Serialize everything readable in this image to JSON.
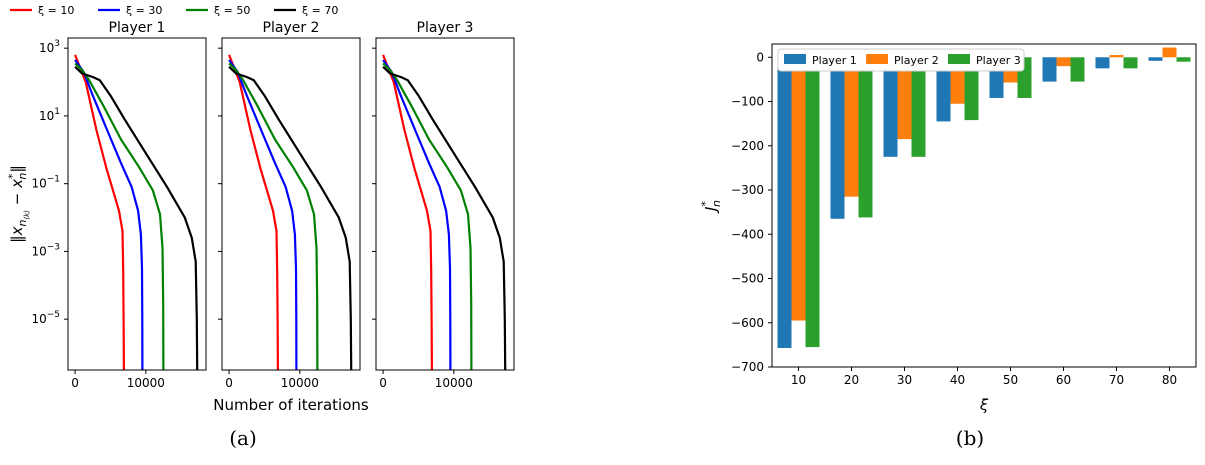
{
  "captions": {
    "a": "(a)",
    "b": "(b)"
  },
  "chart_data": [
    {
      "type": "line",
      "yscale": "log",
      "xlabel": "Number of iterations",
      "ylabel": "‖x_{n^{(k)}} − x_n^*‖",
      "ylabel_parts": {
        "open": "‖x",
        "sub": "n",
        "subsup": "(k)",
        "mid": " − x",
        "sub2": "n",
        "sup2": "*",
        "close": "‖"
      },
      "xlim": [
        -1000,
        18500
      ],
      "ylim_exp": [
        -6.5,
        3.3
      ],
      "xticks": [
        {
          "value": 0,
          "label": "0"
        },
        {
          "value": 10000,
          "label": "10000"
        }
      ],
      "yticks": [
        {
          "exp": 3,
          "base": "10",
          "label": "3"
        },
        {
          "exp": 1,
          "base": "10",
          "label": "1"
        },
        {
          "exp": -1,
          "base": "10",
          "label": "−1"
        },
        {
          "exp": -3,
          "base": "10",
          "label": "−3"
        },
        {
          "exp": -5,
          "base": "10",
          "label": "−5"
        }
      ],
      "legend": {
        "placement": "top-left, above panels",
        "prefix": "ξ = "
      },
      "panels": [
        {
          "title": "Player 1",
          "title_color": "#ff0000"
        },
        {
          "title": "Player 2",
          "title_color": "#0000ff"
        },
        {
          "title": "Player 3",
          "title_color": "#008000"
        }
      ],
      "series": [
        {
          "name": "ξ = 10",
          "xi": "10",
          "color": "#ff0000",
          "x": [
            0,
            1500,
            3000,
            4500,
            5500,
            6200,
            6700,
            6800,
            6850,
            6900
          ],
          "y_exp": [
            2.8,
            2.0,
            0.6,
            -0.6,
            -1.3,
            -1.8,
            -2.4,
            -3.6,
            -5.0,
            -6.5
          ]
        },
        {
          "name": "ξ = 30",
          "xi": "30",
          "color": "#0000ff",
          "x": [
            0,
            1200,
            2500,
            4500,
            6500,
            8000,
            8900,
            9300,
            9450,
            9500,
            9520
          ],
          "y_exp": [
            2.65,
            2.3,
            1.6,
            0.6,
            -0.4,
            -1.1,
            -1.8,
            -2.5,
            -3.5,
            -5.0,
            -6.5
          ]
        },
        {
          "name": "ξ = 50",
          "xi": "50",
          "color": "#008000",
          "x": [
            0,
            1000,
            2000,
            4000,
            6500,
            9000,
            11000,
            12000,
            12350,
            12450,
            12480
          ],
          "y_exp": [
            2.55,
            2.35,
            2.05,
            1.3,
            0.3,
            -0.5,
            -1.2,
            -1.9,
            -2.9,
            -4.5,
            -6.5
          ]
        },
        {
          "name": "ξ = 70",
          "xi": "70",
          "color": "#000000",
          "x": [
            0,
            1000,
            2500,
            3500,
            5000,
            7000,
            10000,
            13000,
            15500,
            16500,
            17050,
            17200,
            17250
          ],
          "y_exp": [
            2.45,
            2.25,
            2.15,
            2.05,
            1.6,
            0.9,
            -0.1,
            -1.1,
            -2.0,
            -2.6,
            -3.3,
            -5.0,
            -6.5
          ]
        }
      ]
    },
    {
      "type": "bar",
      "categories": [
        "10",
        "20",
        "30",
        "40",
        "50",
        "60",
        "70",
        "80"
      ],
      "xlabel": "ξ",
      "ylabel": "J_n^*",
      "ylabel_parts": {
        "base": "J",
        "sub": "n",
        "sup": "*"
      },
      "ylim": [
        -700,
        30
      ],
      "yticks": [
        0,
        -100,
        -200,
        -300,
        -400,
        -500,
        -600,
        -700
      ],
      "ytick_labels": [
        "0",
        "−100",
        "−200",
        "−300",
        "−400",
        "−500",
        "−600",
        "−700"
      ],
      "legend": "top-left",
      "series": [
        {
          "name": "Player 1",
          "color": "#1f77b4",
          "values": [
            -657,
            -365,
            -225,
            -145,
            -92,
            -55,
            -25,
            -8
          ]
        },
        {
          "name": "Player 2",
          "color": "#ff7f0e",
          "values": [
            -595,
            -315,
            -185,
            -105,
            -57,
            -20,
            5,
            22
          ]
        },
        {
          "name": "Player 3",
          "color": "#2ca02c",
          "values": [
            -655,
            -362,
            -225,
            -142,
            -92,
            -55,
            -25,
            -10
          ]
        }
      ]
    }
  ]
}
